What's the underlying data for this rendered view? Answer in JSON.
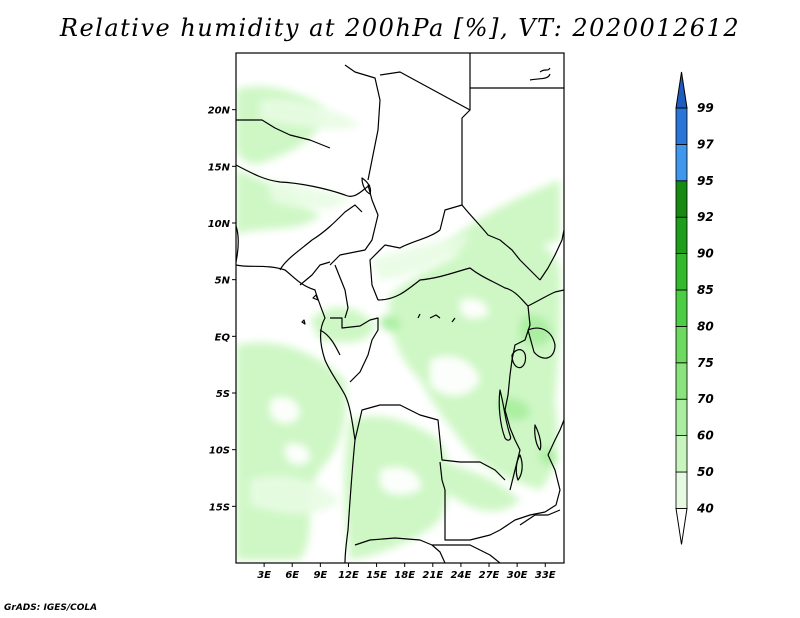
{
  "title": "Relative humidity at 200hPa [%], VT: 2020012612",
  "credit": "GrADS: IGES/COLA",
  "map": {
    "lon_range": [
      0,
      35
    ],
    "lat_range": [
      -20,
      25
    ],
    "lat_ticks": [
      {
        "lat": 20,
        "label": "20N"
      },
      {
        "lat": 15,
        "label": "15N"
      },
      {
        "lat": 10,
        "label": "10N"
      },
      {
        "lat": 5,
        "label": "5N"
      },
      {
        "lat": 0,
        "label": "EQ"
      },
      {
        "lat": -5,
        "label": "5S"
      },
      {
        "lat": -10,
        "label": "10S"
      },
      {
        "lat": -15,
        "label": "15S"
      }
    ],
    "lon_ticks": [
      {
        "lon": 3,
        "label": "3E"
      },
      {
        "lon": 6,
        "label": "6E"
      },
      {
        "lon": 9,
        "label": "9E"
      },
      {
        "lon": 12,
        "label": "12E"
      },
      {
        "lon": 15,
        "label": "15E"
      },
      {
        "lon": 18,
        "label": "18E"
      },
      {
        "lon": 21,
        "label": "21E"
      },
      {
        "lon": 24,
        "label": "24E"
      },
      {
        "lon": 27,
        "label": "27E"
      },
      {
        "lon": 30,
        "label": "30E"
      },
      {
        "lon": 33,
        "label": "33E"
      }
    ]
  },
  "colorbar": {
    "levels": [
      "40",
      "50",
      "60",
      "70",
      "75",
      "80",
      "85",
      "90",
      "92",
      "95",
      "97",
      "99"
    ],
    "colors": [
      "#ffffff",
      "#e6fae1",
      "#c8f5be",
      "#a8ee9e",
      "#8ae47d",
      "#6cda5e",
      "#4cce44",
      "#33b92c",
      "#1f9e1c",
      "#178a14",
      "#3f98ee",
      "#2a76d8",
      "#1f5cc0"
    ]
  }
}
